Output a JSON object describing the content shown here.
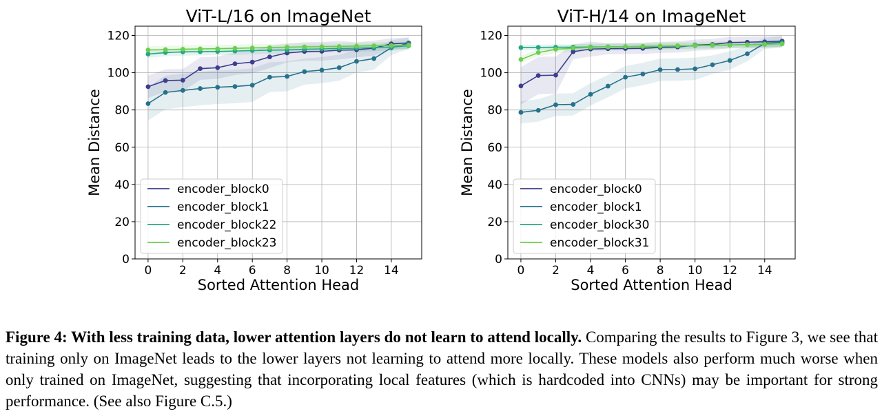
{
  "chart_data": [
    {
      "type": "line",
      "title": "ViT-L/16 on ImageNet",
      "xlabel": "Sorted Attention Head",
      "ylabel": "Mean Distance",
      "xlim": [
        -0.75,
        15.75
      ],
      "ylim": [
        0,
        125
      ],
      "xticks": [
        0,
        2,
        4,
        6,
        8,
        10,
        12,
        14
      ],
      "yticks": [
        0,
        20,
        40,
        60,
        80,
        100,
        120
      ],
      "grid": true,
      "legend_position": "lower-left",
      "x": [
        0,
        1,
        2,
        3,
        4,
        5,
        6,
        7,
        8,
        9,
        10,
        11,
        12,
        13,
        14,
        15
      ],
      "series": [
        {
          "name": "encoder_block0",
          "color": "#3b3f8c",
          "values": [
            92.5,
            95.8,
            96,
            102.2,
            102.7,
            104.8,
            105.7,
            108.5,
            110.6,
            111.4,
            111.5,
            112.1,
            112.3,
            113.2,
            115.5,
            116
          ],
          "band": [
            6,
            6,
            6,
            6,
            6,
            6,
            6,
            6,
            5,
            5,
            5,
            5,
            4,
            4,
            3,
            3
          ]
        },
        {
          "name": "encoder_block1",
          "color": "#26718c",
          "values": [
            83.4,
            89.4,
            90.5,
            91.5,
            92.2,
            92.6,
            93.3,
            97.6,
            98,
            100.6,
            101.4,
            102.7,
            106.1,
            107.6,
            113.4,
            115.8
          ],
          "band": [
            9,
            9,
            9,
            9,
            9,
            9,
            9,
            8,
            8,
            7,
            7,
            7,
            6,
            6,
            4,
            3
          ]
        },
        {
          "name": "encoder_block22",
          "color": "#23a883",
          "values": [
            110,
            110.8,
            111.2,
            111.3,
            111.4,
            111.6,
            111.9,
            112.1,
            112.2,
            112.6,
            112.8,
            113,
            113.2,
            113.5,
            113.8,
            114.5
          ],
          "band": [
            2,
            2,
            2,
            2,
            2,
            2,
            2,
            2,
            2,
            2,
            2,
            2,
            2,
            2,
            2,
            2
          ]
        },
        {
          "name": "encoder_block23",
          "color": "#6ccd4e",
          "values": [
            112.2,
            112.4,
            112.6,
            112.8,
            112.9,
            113.1,
            113.3,
            113.5,
            113.7,
            113.9,
            114,
            114.1,
            114.3,
            114.5,
            114.6,
            114.8
          ],
          "band": [
            2,
            2,
            2,
            2,
            2,
            2,
            2,
            2,
            2,
            2,
            2,
            2,
            2,
            2,
            2,
            2
          ]
        }
      ]
    },
    {
      "type": "line",
      "title": "ViT-H/14 on ImageNet",
      "xlabel": "Sorted Attention Head",
      "ylabel": "Mean Distance",
      "xlim": [
        -0.75,
        15.75
      ],
      "ylim": [
        0,
        125
      ],
      "xticks": [
        0,
        2,
        4,
        6,
        8,
        10,
        12,
        14
      ],
      "yticks": [
        0,
        20,
        40,
        60,
        80,
        100,
        120
      ],
      "grid": true,
      "legend_position": "lower-left",
      "x": [
        0,
        1,
        2,
        3,
        4,
        5,
        6,
        7,
        8,
        9,
        10,
        11,
        12,
        13,
        14,
        15
      ],
      "series": [
        {
          "name": "encoder_block0",
          "color": "#3b3f8c",
          "values": [
            92.9,
            98.5,
            98.7,
            111.3,
            112.7,
            112.9,
            113,
            113.1,
            113.6,
            113.8,
            114.8,
            115.2,
            116.2,
            116.4,
            116.6,
            117
          ],
          "band": [
            10,
            10,
            10,
            4,
            4,
            3,
            3,
            3,
            3,
            3,
            3,
            3,
            3,
            3,
            3,
            3
          ]
        },
        {
          "name": "encoder_block1",
          "color": "#26718c",
          "values": [
            78.7,
            79.8,
            82.8,
            83,
            88.4,
            92.8,
            97.6,
            99.3,
            101.6,
            101.7,
            102.1,
            104.3,
            106.6,
            110.2,
            115.8,
            116.5
          ],
          "band": [
            6,
            6,
            6,
            6,
            6,
            6,
            6,
            6,
            6,
            6,
            6,
            5,
            5,
            4,
            3,
            3
          ]
        },
        {
          "name": "encoder_block30",
          "color": "#23a883",
          "values": [
            113.5,
            113.6,
            113.7,
            113.7,
            113.8,
            113.9,
            114,
            114,
            114.1,
            114.3,
            114.5,
            114.7,
            114.9,
            115.1,
            115.3,
            115.6
          ],
          "band": [
            1.5,
            1.5,
            1.5,
            1.5,
            1.5,
            1.5,
            1.5,
            1.5,
            1.5,
            1.5,
            1.5,
            1.5,
            1.5,
            1.5,
            1.5,
            1.5
          ]
        },
        {
          "name": "encoder_block31",
          "color": "#6ccd4e",
          "values": [
            107.1,
            110.8,
            112.6,
            113.2,
            113.6,
            113.8,
            114,
            114.2,
            114.3,
            114.5,
            114.6,
            114.8,
            114.9,
            115.1,
            115.3,
            115.5
          ],
          "band": [
            2,
            2,
            2,
            2,
            2,
            2,
            2,
            2,
            2,
            2,
            2,
            2,
            2,
            2,
            2,
            2
          ]
        }
      ]
    }
  ],
  "caption": {
    "bold": "Figure 4: With less training data, lower attention layers do not learn to attend locally.",
    "text": " Comparing the results to Figure 3, we see that training only on ImageNet leads to the lower layers not learning to attend more locally. These models also perform much worse when only trained on ImageNet, suggesting that incorporating local features (which is hardcoded into CNNs) may be important for strong performance. (See also Figure C.5.)"
  }
}
